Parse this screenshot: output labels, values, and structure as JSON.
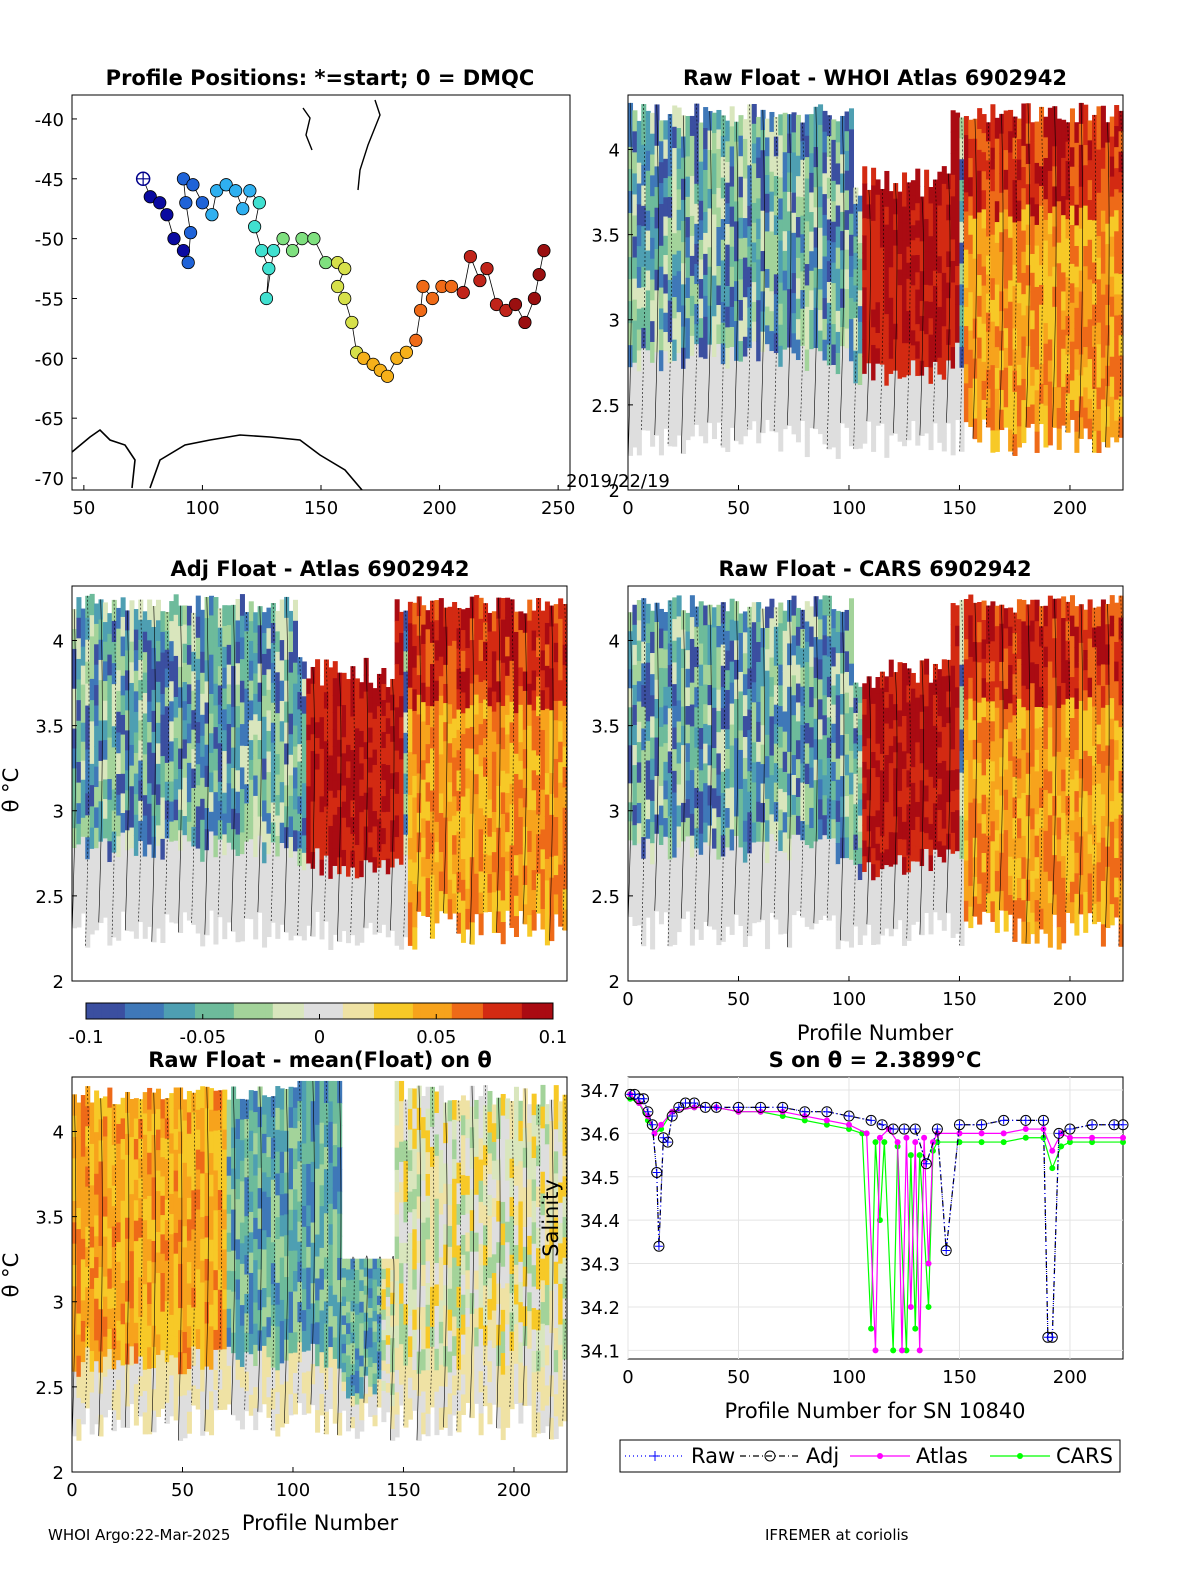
{
  "footer": {
    "left": "WHOI Argo:22-Mar-2025",
    "right": "IFREMER at coriolis"
  },
  "palette": {
    "diverging": [
      "#3b4fa0",
      "#3f78b8",
      "#4e9fb2",
      "#6dbb9b",
      "#a3d39a",
      "#d9e6bd",
      "#dedede",
      "#efe2a4",
      "#f7c927",
      "#f7a31c",
      "#ee6a18",
      "#d32a12",
      "#aa0b12"
    ],
    "latlon": [
      "#0a0aa0",
      "#1f63d8",
      "#2fb0f0",
      "#40e0d0",
      "#7fe07f",
      "#d6e04a",
      "#f6b01a",
      "#ef6a17",
      "#c0241a",
      "#9a0f10"
    ]
  },
  "map": {
    "title": "Profile Positions: *=start; 0 = DMQC",
    "x_ticks": [
      "50",
      "100",
      "150",
      "200",
      "250"
    ],
    "y_ticks": [
      "-40",
      "-45",
      "-50",
      "-55",
      "-60",
      "-65",
      "-70"
    ],
    "xlim": [
      45,
      255
    ],
    "ylim": [
      -71,
      -38
    ],
    "stamp": "2019/22/19"
  },
  "panel_tr": {
    "title": "Raw Float - WHOI Atlas  6902942",
    "x_ticks": [
      "0",
      "50",
      "100",
      "150",
      "200"
    ],
    "y_ticks": [
      "2",
      "2.5",
      "3",
      "3.5",
      "4"
    ]
  },
  "panel_ml": {
    "title": "Adj Float - Atlas  6902942",
    "x_ticks": [],
    "y_ticks": [
      "2",
      "2.5",
      "3",
      "3.5",
      "4"
    ],
    "ylabel": "θ °C"
  },
  "panel_mr": {
    "title": "Raw Float - CARS  6902942",
    "x_ticks": [
      "0",
      "50",
      "100",
      "150",
      "200"
    ],
    "y_ticks": [
      "2",
      "2.5",
      "3",
      "3.5",
      "4"
    ],
    "xlabel": "Profile Number"
  },
  "colorbar": {
    "ticks": [
      "-0.1",
      "-0.05",
      "0",
      "0.05",
      "0.1"
    ]
  },
  "panel_bl": {
    "title": "Raw Float - mean(Float) on θ",
    "x_ticks": [
      "0",
      "50",
      "100",
      "150",
      "200"
    ],
    "y_ticks": [
      "2",
      "2.5",
      "3",
      "3.5",
      "4"
    ],
    "ylabel": "θ °C",
    "xlabel": "Profile Number"
  },
  "chart_data": {
    "type": "line",
    "title": "S on θ = 2.3899°C",
    "xlabel": "Profile Number for SN 10840",
    "ylabel": "Salinity",
    "xlim": [
      0,
      224
    ],
    "ylim": [
      34.08,
      34.73
    ],
    "x_ticks": [
      "0",
      "50",
      "100",
      "150",
      "200"
    ],
    "y_ticks": [
      "34.1",
      "34.2",
      "34.3",
      "34.4",
      "34.5",
      "34.6",
      "34.7"
    ],
    "grid": true,
    "legend_position": "bottom",
    "series": [
      {
        "name": "Raw",
        "color": "#0000ff",
        "values": [
          [
            1,
            34.69
          ],
          [
            3,
            34.69
          ],
          [
            5,
            34.68
          ],
          [
            7,
            34.68
          ],
          [
            9,
            34.65
          ],
          [
            11,
            34.62
          ],
          [
            13,
            34.51
          ],
          [
            14,
            34.34
          ],
          [
            16,
            34.59
          ],
          [
            18,
            34.58
          ],
          [
            20,
            34.64
          ],
          [
            23,
            34.66
          ],
          [
            26,
            34.67
          ],
          [
            30,
            34.67
          ],
          [
            35,
            34.66
          ],
          [
            40,
            34.66
          ],
          [
            50,
            34.66
          ],
          [
            60,
            34.66
          ],
          [
            70,
            34.66
          ],
          [
            80,
            34.65
          ],
          [
            90,
            34.65
          ],
          [
            100,
            34.64
          ],
          [
            110,
            34.63
          ],
          [
            115,
            34.62
          ],
          [
            120,
            34.61
          ],
          [
            125,
            34.61
          ],
          [
            130,
            34.61
          ],
          [
            135,
            34.53
          ],
          [
            140,
            34.61
          ],
          [
            144,
            34.33
          ],
          [
            150,
            34.62
          ],
          [
            160,
            34.62
          ],
          [
            170,
            34.63
          ],
          [
            180,
            34.63
          ],
          [
            188,
            34.63
          ],
          [
            190,
            34.13
          ],
          [
            192,
            34.13
          ],
          [
            195,
            34.6
          ],
          [
            200,
            34.61
          ],
          [
            210,
            34.62
          ],
          [
            220,
            34.62
          ],
          [
            224,
            34.62
          ]
        ]
      },
      {
        "name": "Adj",
        "color": "#000000",
        "values": [
          [
            1,
            34.69
          ],
          [
            3,
            34.69
          ],
          [
            5,
            34.68
          ],
          [
            7,
            34.68
          ],
          [
            9,
            34.65
          ],
          [
            11,
            34.62
          ],
          [
            13,
            34.51
          ],
          [
            14,
            34.34
          ],
          [
            16,
            34.59
          ],
          [
            18,
            34.58
          ],
          [
            20,
            34.64
          ],
          [
            23,
            34.66
          ],
          [
            26,
            34.67
          ],
          [
            30,
            34.67
          ],
          [
            35,
            34.66
          ],
          [
            40,
            34.66
          ],
          [
            50,
            34.66
          ],
          [
            60,
            34.66
          ],
          [
            70,
            34.66
          ],
          [
            80,
            34.65
          ],
          [
            90,
            34.65
          ],
          [
            100,
            34.64
          ],
          [
            110,
            34.63
          ],
          [
            115,
            34.62
          ],
          [
            120,
            34.61
          ],
          [
            125,
            34.61
          ],
          [
            130,
            34.61
          ],
          [
            135,
            34.53
          ],
          [
            140,
            34.61
          ],
          [
            144,
            34.33
          ],
          [
            150,
            34.62
          ],
          [
            160,
            34.62
          ],
          [
            170,
            34.63
          ],
          [
            180,
            34.63
          ],
          [
            188,
            34.63
          ],
          [
            190,
            34.13
          ],
          [
            192,
            34.13
          ],
          [
            195,
            34.6
          ],
          [
            200,
            34.61
          ],
          [
            210,
            34.62
          ],
          [
            220,
            34.62
          ],
          [
            224,
            34.62
          ]
        ]
      },
      {
        "name": "Atlas",
        "color": "#ff00ff",
        "values": [
          [
            1,
            34.69
          ],
          [
            5,
            34.67
          ],
          [
            9,
            34.64
          ],
          [
            12,
            34.6
          ],
          [
            15,
            34.62
          ],
          [
            20,
            34.65
          ],
          [
            30,
            34.66
          ],
          [
            40,
            34.66
          ],
          [
            50,
            34.65
          ],
          [
            60,
            34.65
          ],
          [
            70,
            34.65
          ],
          [
            80,
            34.64
          ],
          [
            90,
            34.63
          ],
          [
            100,
            34.62
          ],
          [
            108,
            34.6
          ],
          [
            112,
            34.1
          ],
          [
            114,
            34.59
          ],
          [
            118,
            34.61
          ],
          [
            122,
            34.58
          ],
          [
            124,
            34.1
          ],
          [
            126,
            34.59
          ],
          [
            128,
            34.2
          ],
          [
            130,
            34.58
          ],
          [
            132,
            34.1
          ],
          [
            134,
            34.59
          ],
          [
            136,
            34.3
          ],
          [
            138,
            34.58
          ],
          [
            140,
            34.6
          ],
          [
            150,
            34.6
          ],
          [
            160,
            34.6
          ],
          [
            170,
            34.6
          ],
          [
            180,
            34.61
          ],
          [
            188,
            34.61
          ],
          [
            192,
            34.56
          ],
          [
            196,
            34.6
          ],
          [
            200,
            34.59
          ],
          [
            210,
            34.59
          ],
          [
            224,
            34.59
          ]
        ]
      },
      {
        "name": "CARS",
        "color": "#00ff00",
        "values": [
          [
            1,
            34.68
          ],
          [
            5,
            34.67
          ],
          [
            9,
            34.63
          ],
          [
            12,
            34.6
          ],
          [
            15,
            34.61
          ],
          [
            20,
            34.65
          ],
          [
            30,
            34.66
          ],
          [
            40,
            34.66
          ],
          [
            50,
            34.65
          ],
          [
            60,
            34.65
          ],
          [
            70,
            34.64
          ],
          [
            80,
            34.63
          ],
          [
            90,
            34.62
          ],
          [
            100,
            34.61
          ],
          [
            106,
            34.6
          ],
          [
            110,
            34.15
          ],
          [
            112,
            34.58
          ],
          [
            114,
            34.4
          ],
          [
            116,
            34.58
          ],
          [
            120,
            34.1
          ],
          [
            122,
            34.57
          ],
          [
            126,
            34.1
          ],
          [
            128,
            34.55
          ],
          [
            130,
            34.15
          ],
          [
            132,
            34.55
          ],
          [
            136,
            34.2
          ],
          [
            138,
            34.56
          ],
          [
            140,
            34.58
          ],
          [
            150,
            34.58
          ],
          [
            160,
            34.58
          ],
          [
            170,
            34.58
          ],
          [
            180,
            34.59
          ],
          [
            188,
            34.59
          ],
          [
            192,
            34.52
          ],
          [
            196,
            34.57
          ],
          [
            200,
            34.58
          ],
          [
            210,
            34.58
          ],
          [
            224,
            34.58
          ]
        ]
      }
    ]
  }
}
